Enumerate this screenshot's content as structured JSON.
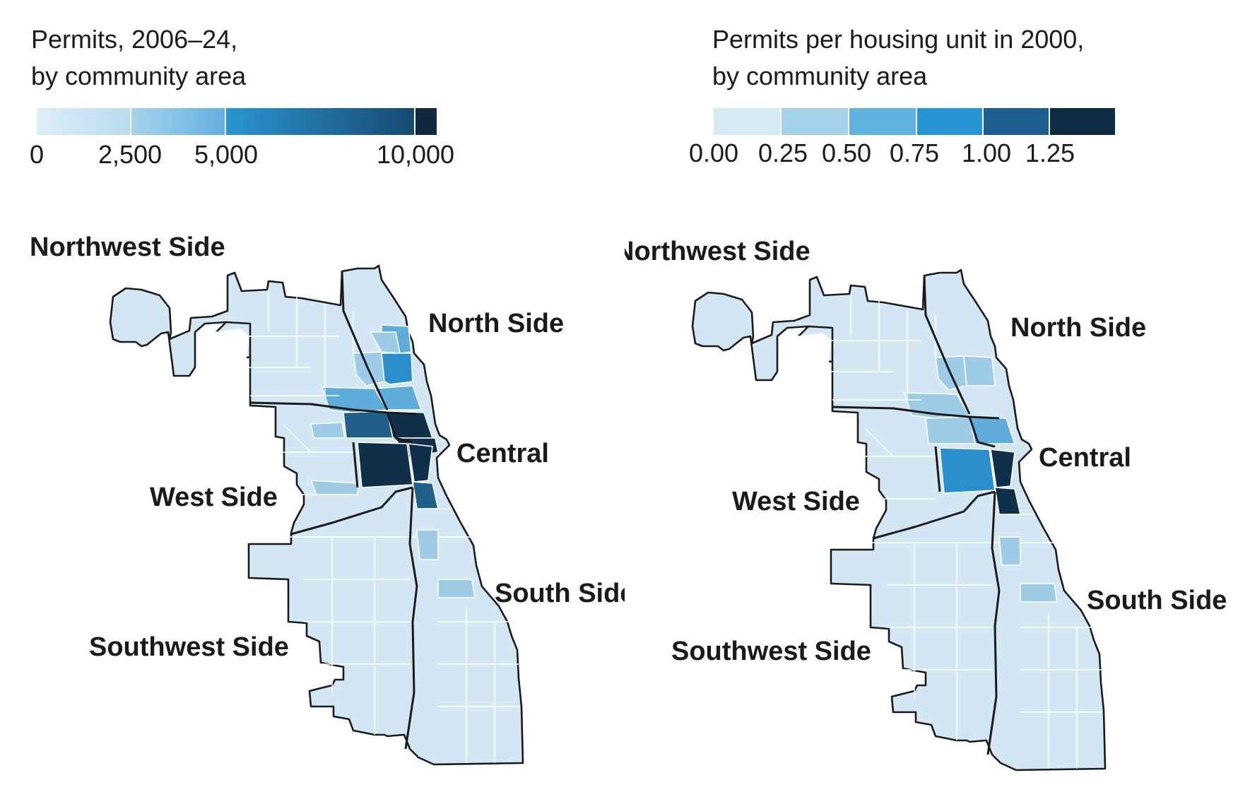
{
  "colors": {
    "c0": "#d3e6f4",
    "c1": "#9ecbe6",
    "c2": "#5eacdc",
    "c3": "#2a8fcc",
    "c4": "#1f5f8a",
    "c5": "#0f2f4a",
    "empty": "#ffffff"
  },
  "left": {
    "legend": {
      "title_line1": "Permits, 2006–24,",
      "title_line2": "by community area",
      "ticks": [
        "0",
        "2,500",
        "5,000",
        "10,000"
      ]
    },
    "regions": {
      "northwest": "Northwest Side",
      "north": "North Side",
      "central": "Central",
      "west": "West Side",
      "south": "South Side",
      "southwest": "Southwest Side"
    }
  },
  "right": {
    "legend": {
      "title_line1": "Permits per housing unit in 2000,",
      "title_line2": "by community area",
      "ticks": [
        "0.00",
        "0.25",
        "0.50",
        "0.75",
        "1.00",
        "1.25"
      ]
    },
    "regions": {
      "northwest": "Northwest Side",
      "north": "North Side",
      "central": "Central",
      "west": "West Side",
      "south": "South Side",
      "southwest": "Southwest Side"
    }
  }
}
